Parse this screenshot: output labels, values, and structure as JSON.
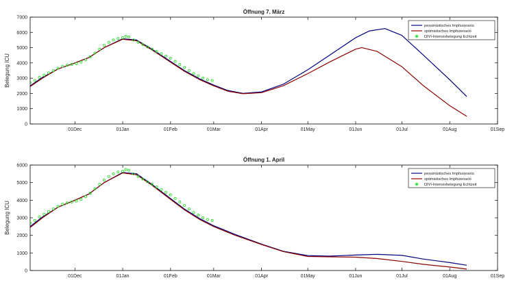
{
  "chart_data": [
    {
      "type": "line",
      "title": "Öffnung 7. März",
      "ylabel": "Belegung ICU",
      "xlabel": "",
      "xlim": [
        "2020-11-02",
        "2021-09-01"
      ],
      "ylim": [
        0,
        7000
      ],
      "yticks": [
        0,
        1000,
        2000,
        3000,
        4000,
        5000,
        6000,
        7000
      ],
      "xticks": [
        {
          "date": "2020-12-01",
          "label": "01Dec"
        },
        {
          "date": "2021-01-01",
          "label": "01Jan"
        },
        {
          "date": "2021-02-01",
          "label": "01Feb"
        },
        {
          "date": "2021-03-01",
          "label": "01Mar"
        },
        {
          "date": "2021-04-01",
          "label": "01Apr"
        },
        {
          "date": "2021-05-01",
          "label": "01May"
        },
        {
          "date": "2021-06-01",
          "label": "01Jun"
        },
        {
          "date": "2021-07-01",
          "label": "01Jul"
        },
        {
          "date": "2021-08-01",
          "label": "01Aug"
        },
        {
          "date": "2021-09-01",
          "label": "01Sep"
        }
      ],
      "legend": "top-right",
      "series": [
        {
          "name": "pessimistisches Impfszenario",
          "color": "#00007f",
          "style": "line",
          "points": [
            [
              "2020-11-02",
              2500
            ],
            [
              "2020-11-10",
              3050
            ],
            [
              "2020-11-20",
              3600
            ],
            [
              "2020-12-01",
              4000
            ],
            [
              "2020-12-10",
              4350
            ],
            [
              "2020-12-20",
              5000
            ],
            [
              "2021-01-01",
              5580
            ],
            [
              "2021-01-10",
              5500
            ],
            [
              "2021-01-20",
              4900
            ],
            [
              "2021-02-01",
              4100
            ],
            [
              "2021-02-10",
              3500
            ],
            [
              "2021-02-20",
              2950
            ],
            [
              "2021-03-01",
              2550
            ],
            [
              "2021-03-10",
              2200
            ],
            [
              "2021-03-20",
              2000
            ],
            [
              "2021-04-01",
              2100
            ],
            [
              "2021-04-15",
              2600
            ],
            [
              "2021-05-01",
              3550
            ],
            [
              "2021-05-15",
              4500
            ],
            [
              "2021-06-01",
              5650
            ],
            [
              "2021-06-10",
              6100
            ],
            [
              "2021-06-20",
              6250
            ],
            [
              "2021-07-01",
              5800
            ],
            [
              "2021-07-15",
              4500
            ],
            [
              "2021-08-01",
              2900
            ],
            [
              "2021-08-12",
              1800
            ]
          ]
        },
        {
          "name": "optimistisches Impfszenario",
          "color": "#8b0000",
          "style": "line",
          "points": [
            [
              "2020-11-02",
              2450
            ],
            [
              "2020-11-10",
              3000
            ],
            [
              "2020-11-20",
              3600
            ],
            [
              "2020-12-01",
              4000
            ],
            [
              "2020-12-10",
              4350
            ],
            [
              "2020-12-20",
              5000
            ],
            [
              "2021-01-01",
              5550
            ],
            [
              "2021-01-10",
              5450
            ],
            [
              "2021-01-20",
              4850
            ],
            [
              "2021-02-01",
              4050
            ],
            [
              "2021-02-10",
              3450
            ],
            [
              "2021-02-20",
              2900
            ],
            [
              "2021-03-01",
              2500
            ],
            [
              "2021-03-10",
              2150
            ],
            [
              "2021-03-20",
              1980
            ],
            [
              "2021-04-01",
              2050
            ],
            [
              "2021-04-15",
              2500
            ],
            [
              "2021-05-01",
              3300
            ],
            [
              "2021-05-15",
              4050
            ],
            [
              "2021-06-01",
              4900
            ],
            [
              "2021-06-05",
              5000
            ],
            [
              "2021-06-15",
              4750
            ],
            [
              "2021-07-01",
              3750
            ],
            [
              "2021-07-15",
              2500
            ],
            [
              "2021-08-01",
              1200
            ],
            [
              "2021-08-12",
              500
            ]
          ]
        },
        {
          "name": "DIVI-Intensivbelegung Echtzeit",
          "color": "#33dd33",
          "style": "markers",
          "points": [
            [
              "2020-11-02",
              2700
            ],
            [
              "2020-11-05",
              2850
            ],
            [
              "2020-11-08",
              3050
            ],
            [
              "2020-11-11",
              3200
            ],
            [
              "2020-11-14",
              3350
            ],
            [
              "2020-11-17",
              3500
            ],
            [
              "2020-11-20",
              3650
            ],
            [
              "2020-11-23",
              3780
            ],
            [
              "2020-11-26",
              3850
            ],
            [
              "2020-11-29",
              3900
            ],
            [
              "2020-12-02",
              3950
            ],
            [
              "2020-12-05",
              4050
            ],
            [
              "2020-12-08",
              4200
            ],
            [
              "2020-12-11",
              4400
            ],
            [
              "2020-12-14",
              4650
            ],
            [
              "2020-12-17",
              4900
            ],
            [
              "2020-12-20",
              5150
            ],
            [
              "2020-12-23",
              5350
            ],
            [
              "2020-12-26",
              5500
            ],
            [
              "2020-12-29",
              5600
            ],
            [
              "2021-01-01",
              5650
            ],
            [
              "2021-01-03",
              5750
            ],
            [
              "2021-01-05",
              5700
            ],
            [
              "2021-01-08",
              5500
            ],
            [
              "2021-01-11",
              5350
            ],
            [
              "2021-01-14",
              5200
            ],
            [
              "2021-01-17",
              5050
            ],
            [
              "2021-01-20",
              4900
            ],
            [
              "2021-01-23",
              4750
            ],
            [
              "2021-01-26",
              4600
            ],
            [
              "2021-01-29",
              4450
            ],
            [
              "2021-02-01",
              4300
            ],
            [
              "2021-02-04",
              4100
            ],
            [
              "2021-02-07",
              3900
            ],
            [
              "2021-02-10",
              3700
            ],
            [
              "2021-02-13",
              3500
            ],
            [
              "2021-02-16",
              3300
            ],
            [
              "2021-02-19",
              3150
            ],
            [
              "2021-02-22",
              3000
            ],
            [
              "2021-02-25",
              2900
            ],
            [
              "2021-02-28",
              2850
            ]
          ]
        }
      ]
    },
    {
      "type": "line",
      "title": "Öffnung 1. April",
      "ylabel": "Belegung ICU",
      "xlabel": "",
      "xlim": [
        "2020-11-02",
        "2021-09-01"
      ],
      "ylim": [
        0,
        6000
      ],
      "yticks": [
        0,
        1000,
        2000,
        3000,
        4000,
        5000,
        6000
      ],
      "xticks": [
        {
          "date": "2020-12-01",
          "label": "01Dec"
        },
        {
          "date": "2021-01-01",
          "label": "01Jan"
        },
        {
          "date": "2021-02-01",
          "label": "01Feb"
        },
        {
          "date": "2021-03-01",
          "label": "01Mar"
        },
        {
          "date": "2021-04-01",
          "label": "01Apr"
        },
        {
          "date": "2021-05-01",
          "label": "01May"
        },
        {
          "date": "2021-06-01",
          "label": "01Jun"
        },
        {
          "date": "2021-07-01",
          "label": "01Jul"
        },
        {
          "date": "2021-08-01",
          "label": "01Aug"
        },
        {
          "date": "2021-09-01",
          "label": "01Sep"
        }
      ],
      "legend": "top-right",
      "series": [
        {
          "name": "pessimistisches Impfszenario",
          "color": "#00007f",
          "style": "line",
          "points": [
            [
              "2020-11-02",
              2500
            ],
            [
              "2020-11-10",
              3050
            ],
            [
              "2020-11-20",
              3600
            ],
            [
              "2020-12-01",
              4000
            ],
            [
              "2020-12-10",
              4350
            ],
            [
              "2020-12-20",
              5000
            ],
            [
              "2021-01-01",
              5580
            ],
            [
              "2021-01-10",
              5500
            ],
            [
              "2021-01-20",
              4900
            ],
            [
              "2021-02-01",
              4100
            ],
            [
              "2021-02-10",
              3500
            ],
            [
              "2021-02-20",
              2950
            ],
            [
              "2021-03-01",
              2550
            ],
            [
              "2021-03-15",
              2050
            ],
            [
              "2021-04-01",
              1500
            ],
            [
              "2021-04-15",
              1100
            ],
            [
              "2021-05-01",
              850
            ],
            [
              "2021-05-15",
              820
            ],
            [
              "2021-06-01",
              880
            ],
            [
              "2021-06-15",
              920
            ],
            [
              "2021-07-01",
              860
            ],
            [
              "2021-07-15",
              650
            ],
            [
              "2021-08-01",
              450
            ],
            [
              "2021-08-12",
              300
            ]
          ]
        },
        {
          "name": "optimistisches Impfszenario",
          "color": "#8b0000",
          "style": "line",
          "points": [
            [
              "2020-11-02",
              2450
            ],
            [
              "2020-11-10",
              3000
            ],
            [
              "2020-11-20",
              3600
            ],
            [
              "2020-12-01",
              4000
            ],
            [
              "2020-12-10",
              4350
            ],
            [
              "2020-12-20",
              5000
            ],
            [
              "2021-01-01",
              5550
            ],
            [
              "2021-01-10",
              5450
            ],
            [
              "2021-01-20",
              4850
            ],
            [
              "2021-02-01",
              4050
            ],
            [
              "2021-02-10",
              3450
            ],
            [
              "2021-02-20",
              2900
            ],
            [
              "2021-03-01",
              2500
            ],
            [
              "2021-03-15",
              2000
            ],
            [
              "2021-04-01",
              1480
            ],
            [
              "2021-04-15",
              1080
            ],
            [
              "2021-05-01",
              800
            ],
            [
              "2021-05-15",
              780
            ],
            [
              "2021-06-01",
              760
            ],
            [
              "2021-06-15",
              680
            ],
            [
              "2021-07-01",
              520
            ],
            [
              "2021-07-15",
              350
            ],
            [
              "2021-08-01",
              200
            ],
            [
              "2021-08-12",
              80
            ]
          ]
        },
        {
          "name": "DIVI-Intensivbelegung Echtzeit",
          "color": "#33dd33",
          "style": "markers",
          "points": [
            [
              "2020-11-02",
              2700
            ],
            [
              "2020-11-05",
              2850
            ],
            [
              "2020-11-08",
              3050
            ],
            [
              "2020-11-11",
              3200
            ],
            [
              "2020-11-14",
              3350
            ],
            [
              "2020-11-17",
              3500
            ],
            [
              "2020-11-20",
              3650
            ],
            [
              "2020-11-23",
              3780
            ],
            [
              "2020-11-26",
              3850
            ],
            [
              "2020-11-29",
              3900
            ],
            [
              "2020-12-02",
              3950
            ],
            [
              "2020-12-05",
              4050
            ],
            [
              "2020-12-08",
              4200
            ],
            [
              "2020-12-11",
              4400
            ],
            [
              "2020-12-14",
              4650
            ],
            [
              "2020-12-17",
              4900
            ],
            [
              "2020-12-20",
              5150
            ],
            [
              "2020-12-23",
              5350
            ],
            [
              "2020-12-26",
              5500
            ],
            [
              "2020-12-29",
              5600
            ],
            [
              "2021-01-01",
              5650
            ],
            [
              "2021-01-03",
              5750
            ],
            [
              "2021-01-05",
              5700
            ],
            [
              "2021-01-08",
              5500
            ],
            [
              "2021-01-11",
              5350
            ],
            [
              "2021-01-14",
              5200
            ],
            [
              "2021-01-17",
              5050
            ],
            [
              "2021-01-20",
              4900
            ],
            [
              "2021-01-23",
              4750
            ],
            [
              "2021-01-26",
              4600
            ],
            [
              "2021-01-29",
              4450
            ],
            [
              "2021-02-01",
              4300
            ],
            [
              "2021-02-04",
              4100
            ],
            [
              "2021-02-07",
              3900
            ],
            [
              "2021-02-10",
              3700
            ],
            [
              "2021-02-13",
              3500
            ],
            [
              "2021-02-16",
              3300
            ],
            [
              "2021-02-19",
              3150
            ],
            [
              "2021-02-22",
              3000
            ],
            [
              "2021-02-25",
              2900
            ],
            [
              "2021-02-28",
              2850
            ]
          ]
        }
      ]
    }
  ]
}
